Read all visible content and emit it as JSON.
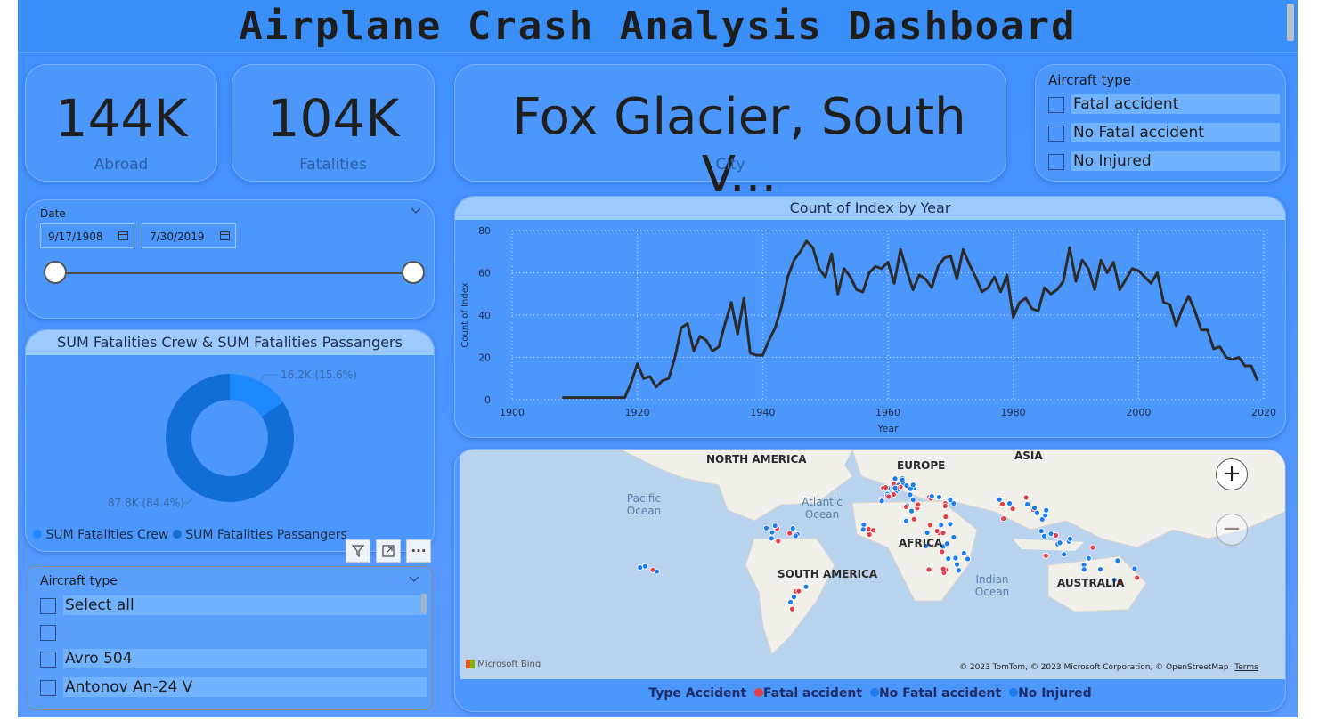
{
  "title": "Airplane Crash Analysis Dashboard",
  "kpis": [
    {
      "value": "144K",
      "label": "Abroad"
    },
    {
      "value": "104K",
      "label": "Fatalities"
    },
    {
      "value": "Fox Glacier, South V...",
      "label": "City"
    }
  ],
  "aircraft_slicer_top": {
    "title": "Aircraft type",
    "items": [
      "Fatal accident",
      "No Fatal accident",
      "No Injured"
    ]
  },
  "date_slicer": {
    "title": "Date",
    "start": "9/17/1908",
    "end": "7/30/2019",
    "range_fraction": [
      0,
      1
    ]
  },
  "donut": {
    "title": "SUM Fatalities Crew & SUM Fatalities Passangers",
    "slices": [
      {
        "name": "SUM Fatalities Crew",
        "label": "16.2K (15.6%)",
        "value": 16.2,
        "color": "#1e88ff"
      },
      {
        "name": "SUM Fatalities Passangers",
        "label": "87.8K (84.4%)",
        "value": 87.8,
        "color": "#126ed6"
      }
    ]
  },
  "aircraft_slicer_bottom": {
    "title": "Aircraft type",
    "items": [
      "Select all",
      "",
      "Avro 504",
      "Antonov An-24 V"
    ]
  },
  "line_chart": {
    "title": "Count of Index by Year"
  },
  "chart_data": {
    "type": "line",
    "title": "Count of Index by Year",
    "xlabel": "Year",
    "ylabel": "Count of Index",
    "xlim": [
      1900,
      2020
    ],
    "ylim": [
      0,
      80
    ],
    "x_ticks": [
      1900,
      1920,
      1940,
      1960,
      1980,
      2000,
      2020
    ],
    "y_ticks": [
      0,
      20,
      40,
      60,
      80
    ],
    "grid": true,
    "series": [
      {
        "x": [
          1908,
          1909,
          1910,
          1911,
          1912,
          1913,
          1914,
          1915,
          1916,
          1917,
          1918,
          1919,
          1920,
          1921,
          1922,
          1923,
          1924,
          1925,
          1926,
          1927,
          1928,
          1929,
          1930,
          1931,
          1932,
          1933,
          1934,
          1935,
          1936,
          1937,
          1938,
          1939,
          1940,
          1941,
          1942,
          1943,
          1944,
          1945,
          1946,
          1947,
          1948,
          1949,
          1950,
          1951,
          1952,
          1953,
          1954,
          1955,
          1956,
          1957,
          1958,
          1959,
          1960,
          1961,
          1962,
          1963,
          1964,
          1965,
          1966,
          1967,
          1968,
          1969,
          1970,
          1971,
          1972,
          1973,
          1974,
          1975,
          1976,
          1977,
          1978,
          1979,
          1980,
          1981,
          1982,
          1983,
          1984,
          1985,
          1986,
          1987,
          1988,
          1989,
          1990,
          1991,
          1992,
          1993,
          1994,
          1995,
          1996,
          1997,
          1998,
          1999,
          2000,
          2001,
          2002,
          2003,
          2004,
          2005,
          2006,
          2007,
          2008,
          2009,
          2010,
          2011,
          2012,
          2013,
          2014,
          2015,
          2016,
          2017,
          2018,
          2019
        ],
        "y": [
          1,
          1,
          1,
          1,
          1,
          1,
          1,
          1,
          1,
          1,
          1,
          8,
          17,
          10,
          11,
          6,
          9,
          10,
          20,
          34,
          36,
          23,
          30,
          28,
          23,
          25,
          36,
          46,
          31,
          48,
          22,
          21,
          21,
          28,
          34,
          44,
          58,
          66,
          70,
          75,
          72,
          62,
          58,
          69,
          50,
          62,
          58,
          52,
          51,
          60,
          63,
          62,
          65,
          55,
          71,
          61,
          52,
          59,
          57,
          53,
          63,
          67,
          68,
          57,
          71,
          64,
          58,
          51,
          53,
          58,
          51,
          59,
          39,
          46,
          48,
          43,
          42,
          53,
          50,
          52,
          56,
          72,
          56,
          66,
          62,
          52,
          66,
          60,
          65,
          52,
          57,
          62,
          61,
          58,
          55,
          60,
          46,
          45,
          35,
          43,
          49,
          42,
          33,
          33,
          24,
          25,
          20,
          19,
          20,
          16,
          16,
          9
        ]
      }
    ]
  },
  "map": {
    "labels": [
      "NORTH AMERICA",
      "EUROPE",
      "ASIA",
      "AFRICA",
      "SOUTH AMERICA",
      "AUSTRALIA"
    ],
    "oceans": [
      "Pacific Ocean",
      "Atlantic Ocean",
      "Indian Ocean"
    ],
    "attribution": "© 2023 TomTom, © 2023 Microsoft Corporation, © OpenStreetMap",
    "terms": "Terms",
    "bing": "Microsoft Bing",
    "legend_title": "Type Accident",
    "legend_items": [
      {
        "name": "Fatal accident",
        "color": "#e0404a"
      },
      {
        "name": "No Fatal accident",
        "color": "#1c7cf0"
      },
      {
        "name": "No Injured",
        "color": "#1c7cf0"
      }
    ]
  },
  "colors": {
    "accent": "#3d90ff",
    "line": "#2b2b2b",
    "fatal": "#e0404a",
    "nonfatal": "#1c7cf0"
  }
}
